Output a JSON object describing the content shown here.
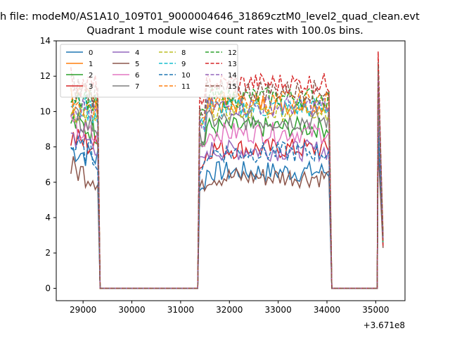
{
  "chart_data": {
    "type": "line",
    "title_line1": "h file: modeM0/AS1A10_109T01_9000004646_31869cztM0_level2_quad_clean.evt",
    "title": "Quadrant 1 module wise count rates with 100.0s bins.",
    "xlabel": "",
    "ylabel": "",
    "x_offset_label": "+3.671e8",
    "xlim": [
      28450,
      35600
    ],
    "ylim": [
      -0.7,
      14.0
    ],
    "x_ticks": [
      29000,
      30000,
      31000,
      32000,
      33000,
      34000,
      35000
    ],
    "x_tick_labels": [
      "29000",
      "30000",
      "31000",
      "32000",
      "33000",
      "34000",
      "35000"
    ],
    "y_ticks": [
      0,
      2,
      4,
      6,
      8,
      10,
      12,
      14
    ],
    "y_tick_labels": [
      "0",
      "2",
      "4",
      "6",
      "8",
      "10",
      "12",
      "14"
    ],
    "grid": false,
    "legend_placement": "top-left",
    "legend_columns": 4,
    "series": [
      {
        "name": "0",
        "color": "#1f77b4",
        "dash": "solid",
        "base1": 7.9,
        "base2": 6.6,
        "base3": 8.8
      },
      {
        "name": "1",
        "color": "#ff7f0e",
        "dash": "solid",
        "base1": 11.0,
        "base2": 10.4,
        "base3": 12.0
      },
      {
        "name": "2",
        "color": "#2ca02c",
        "dash": "solid",
        "base1": 9.4,
        "base2": 9.1,
        "base3": 11.0
      },
      {
        "name": "3",
        "color": "#d62728",
        "dash": "solid",
        "base1": 8.5,
        "base2": 7.9,
        "base3": 11.0
      },
      {
        "name": "4",
        "color": "#9467bd",
        "dash": "solid",
        "base1": 8.7,
        "base2": 7.8,
        "base3": 10.0
      },
      {
        "name": "5",
        "color": "#8c564b",
        "dash": "solid",
        "base1": 6.8,
        "base2": 6.3,
        "base3": 8.0
      },
      {
        "name": "6",
        "color": "#e377c2",
        "dash": "solid",
        "base1": 9.0,
        "base2": 8.8,
        "base3": 10.5
      },
      {
        "name": "7",
        "color": "#7f7f7f",
        "dash": "solid",
        "base1": 9.6,
        "base2": 9.5,
        "base3": 11.0
      },
      {
        "name": "8",
        "color": "#bcbd22",
        "dash": "dashed",
        "base1": 10.2,
        "base2": 10.1,
        "base3": 11.5
      },
      {
        "name": "9",
        "color": "#17becf",
        "dash": "dashed",
        "base1": 10.5,
        "base2": 10.2,
        "base3": 11.8
      },
      {
        "name": "10",
        "color": "#1f77b4",
        "dash": "dashed",
        "base1": 8.0,
        "base2": 7.7,
        "base3": 9.0
      },
      {
        "name": "11",
        "color": "#ff7f0e",
        "dash": "dashed",
        "base1": 10.6,
        "base2": 10.6,
        "base3": 12.2
      },
      {
        "name": "12",
        "color": "#2ca02c",
        "dash": "dashed",
        "base1": 11.2,
        "base2": 10.8,
        "base3": 12.5
      },
      {
        "name": "13",
        "color": "#d62728",
        "dash": "dashed",
        "base1": 11.8,
        "base2": 11.6,
        "base3": 13.4
      },
      {
        "name": "14",
        "color": "#9467bd",
        "dash": "dashed",
        "base1": 10.4,
        "base2": 10.3,
        "base3": 12.0
      },
      {
        "name": "15",
        "color": "#8c564b",
        "dash": "dashed",
        "base1": 11.5,
        "base2": 11.2,
        "base3": 12.8
      }
    ],
    "segments_x": {
      "segment1": [
        28750,
        29350
      ],
      "gap1": [
        29350,
        31350
      ],
      "segment2": [
        31350,
        34100
      ],
      "gap2": [
        34100,
        35050
      ],
      "segment3": [
        35050,
        35150
      ]
    },
    "bin_seconds": 100.0
  }
}
